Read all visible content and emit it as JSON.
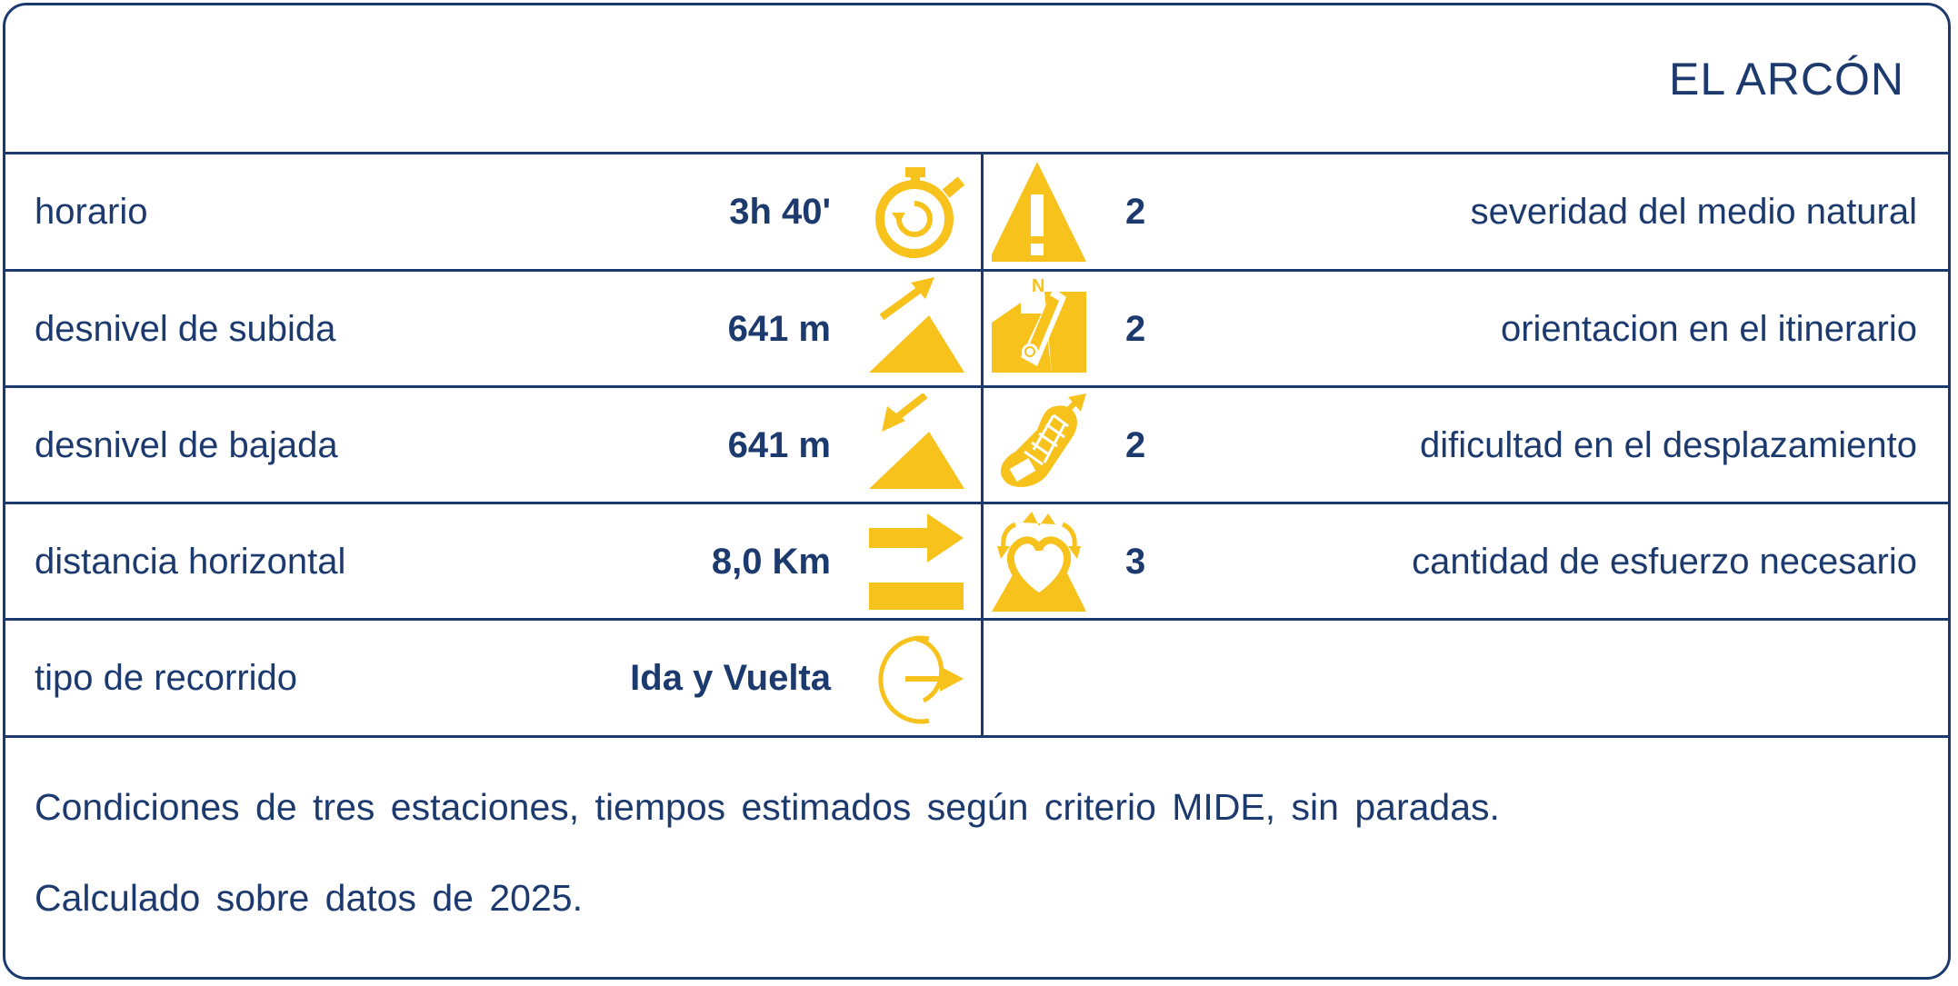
{
  "title": "EL  ARCÓN",
  "rows": [
    {
      "label": "horario",
      "value": "3h 40'",
      "left_icon": "stopwatch-icon",
      "right_icon": "warning-triangle-icon",
      "score": "2",
      "right_label": "severidad del medio natural"
    },
    {
      "label": "desnivel de subida",
      "value": "641 m",
      "left_icon": "ascent-slope-icon",
      "right_icon": "compass-map-icon",
      "score": "2",
      "right_label": "orientacion en el itinerario"
    },
    {
      "label": "desnivel de bajada",
      "value": "641 m",
      "left_icon": "descent-slope-icon",
      "right_icon": "footprint-icon",
      "score": "2",
      "right_label": "dificultad en el desplazamiento"
    },
    {
      "label": "distancia horizontal",
      "value": "8,0 Km",
      "left_icon": "distance-arrow-icon",
      "right_icon": "heart-effort-icon",
      "score": "3",
      "right_label": "cantidad de esfuerzo necesario"
    },
    {
      "label": "tipo de recorrido",
      "value": "Ida y Vuelta",
      "left_icon": "round-trip-icon"
    }
  ],
  "notes": [
    "Condiciones de tres estaciones, tiempos estimados según criterio MIDE, sin paradas.",
    "Calculado sobre datos de 2025."
  ],
  "colors": {
    "primary": "#1c3a6e",
    "accent": "#f7c21c",
    "background": "#ffffff"
  }
}
